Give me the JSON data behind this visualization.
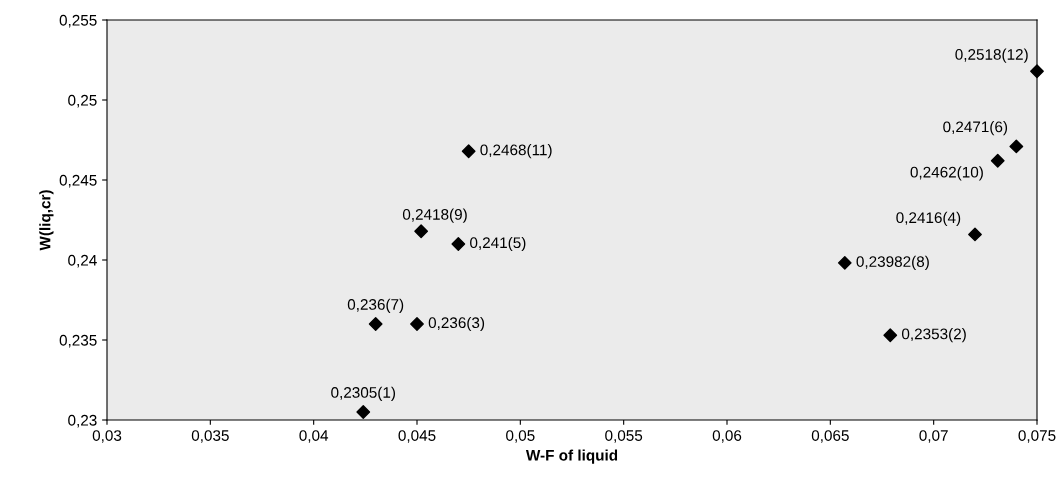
{
  "chart_data": {
    "type": "scatter",
    "xlabel": "W-F of liquid",
    "ylabel": "W(liq,cr)",
    "x": [
      0.0424,
      0.0679,
      0.045,
      0.072,
      0.047,
      0.074,
      0.043,
      0.0657,
      0.0452,
      0.0731,
      0.0475,
      0.075
    ],
    "series": [
      {
        "color": "#000000",
        "values": [
          0.2305,
          0.2353,
          0.236,
          0.2416,
          0.241,
          0.2471,
          0.236,
          0.23982,
          0.2418,
          0.2462,
          0.2468,
          0.2518
        ],
        "value_labels": [
          "0,2305(1)",
          "0,2353(2)",
          "0,236(3)",
          "0,2416(4)",
          "0,241(5)",
          "0,2471(6)",
          "0,236(7)",
          "0,23982(8)",
          "0,2418(9)",
          "0,2462(10)",
          "0,2468(11)",
          "0,2518(12)"
        ]
      }
    ],
    "marker": "diamond",
    "grid": false,
    "xlim": [
      0.03,
      0.075
    ],
    "ylim": [
      0.23,
      0.255
    ],
    "xticks": [
      {
        "value": 0.03,
        "label": "0,03"
      },
      {
        "value": 0.035,
        "label": "0,035"
      },
      {
        "value": 0.04,
        "label": "0,04"
      },
      {
        "value": 0.045,
        "label": "0,045"
      },
      {
        "value": 0.05,
        "label": "0,05"
      },
      {
        "value": 0.055,
        "label": "0,055"
      },
      {
        "value": 0.06,
        "label": "0,06"
      },
      {
        "value": 0.065,
        "label": "0,065"
      },
      {
        "value": 0.07,
        "label": "0,07"
      },
      {
        "value": 0.075,
        "label": "0,075"
      }
    ],
    "yticks": [
      {
        "value": 0.23,
        "label": "0,23"
      },
      {
        "value": 0.235,
        "label": "0,235"
      },
      {
        "value": 0.24,
        "label": "0,24"
      },
      {
        "value": 0.245,
        "label": "0,245"
      },
      {
        "value": 0.25,
        "label": "0,25"
      },
      {
        "value": 0.255,
        "label": "0,255"
      }
    ]
  }
}
